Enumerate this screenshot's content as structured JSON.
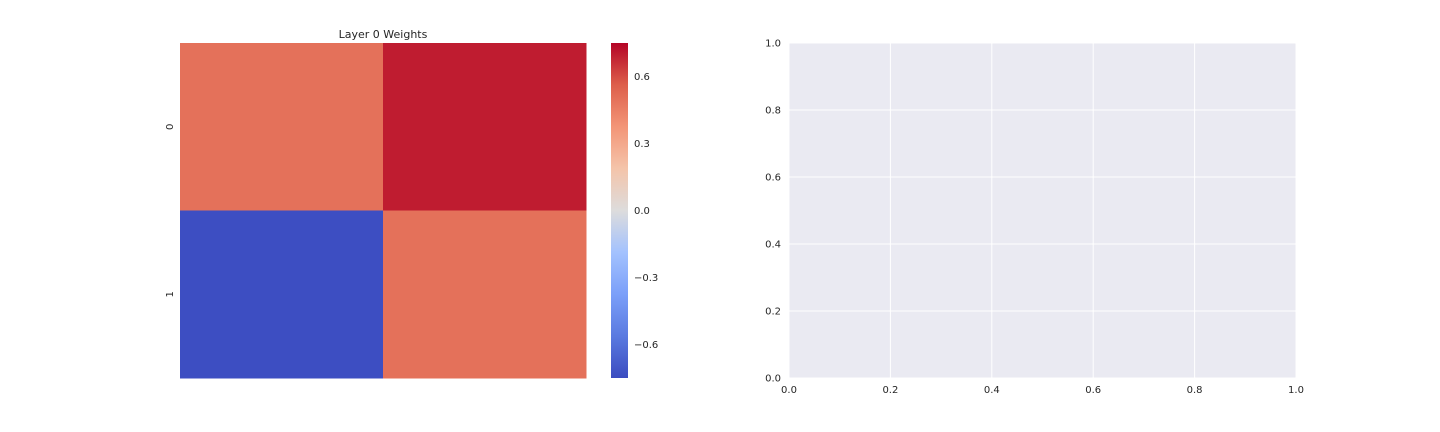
{
  "chart_data": [
    {
      "type": "heatmap",
      "title": "Layer 0 Weights",
      "rows": [
        "0",
        "1"
      ],
      "cols": [
        "",
        ""
      ],
      "values": [
        [
          0.5,
          0.7
        ],
        [
          -0.74,
          0.5
        ]
      ],
      "colorbar": {
        "cmap": "coolwarm",
        "vmin": -0.75,
        "vmax": 0.75,
        "ticks": [
          -0.6,
          -0.3,
          0.0,
          0.3,
          0.6
        ],
        "tick_labels": [
          "−0.6",
          "−0.3",
          "0.0",
          "0.3",
          "0.6"
        ]
      }
    },
    {
      "type": "scatter",
      "title": "",
      "series": [],
      "xlim": [
        0,
        1
      ],
      "ylim": [
        0,
        1
      ],
      "xticks": [
        0.0,
        0.2,
        0.4,
        0.6,
        0.8,
        1.0
      ],
      "yticks": [
        0.0,
        0.2,
        0.4,
        0.6,
        0.8,
        1.0
      ],
      "xtick_labels": [
        "0.0",
        "0.2",
        "0.4",
        "0.6",
        "0.8",
        "1.0"
      ],
      "ytick_labels": [
        "0.0",
        "0.2",
        "0.4",
        "0.6",
        "0.8",
        "1.0"
      ],
      "grid": true,
      "background": "#eaeaf2"
    }
  ]
}
